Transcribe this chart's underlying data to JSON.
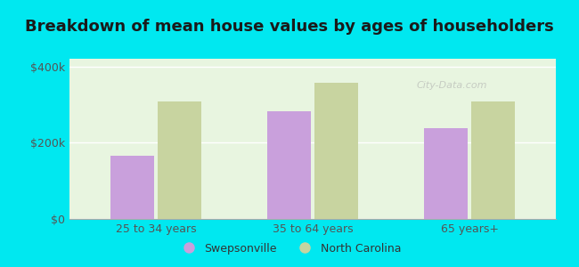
{
  "title": "Breakdown of mean house values by ages of householders",
  "categories": [
    "25 to 34 years",
    "35 to 64 years",
    "65 years+"
  ],
  "swepsonville": [
    165000,
    283000,
    238000
  ],
  "north_carolina": [
    308000,
    358000,
    308000
  ],
  "swepsonville_color": "#c9a0dc",
  "north_carolina_color": "#c8d4a0",
  "background_color": "#00e8f0",
  "plot_bg_start": "#e8f5e0",
  "plot_bg_end": "#f8fef5",
  "ylim": [
    0,
    420000
  ],
  "yticks": [
    0,
    200000,
    400000
  ],
  "ytick_labels": [
    "$0",
    "$200k",
    "$400k"
  ],
  "legend_swepsonville": "Swepsonville",
  "legend_north_carolina": "North Carolina",
  "bar_width": 0.28,
  "title_fontsize": 13,
  "axis_fontsize": 9,
  "legend_fontsize": 9,
  "watermark": "City-Data.com"
}
